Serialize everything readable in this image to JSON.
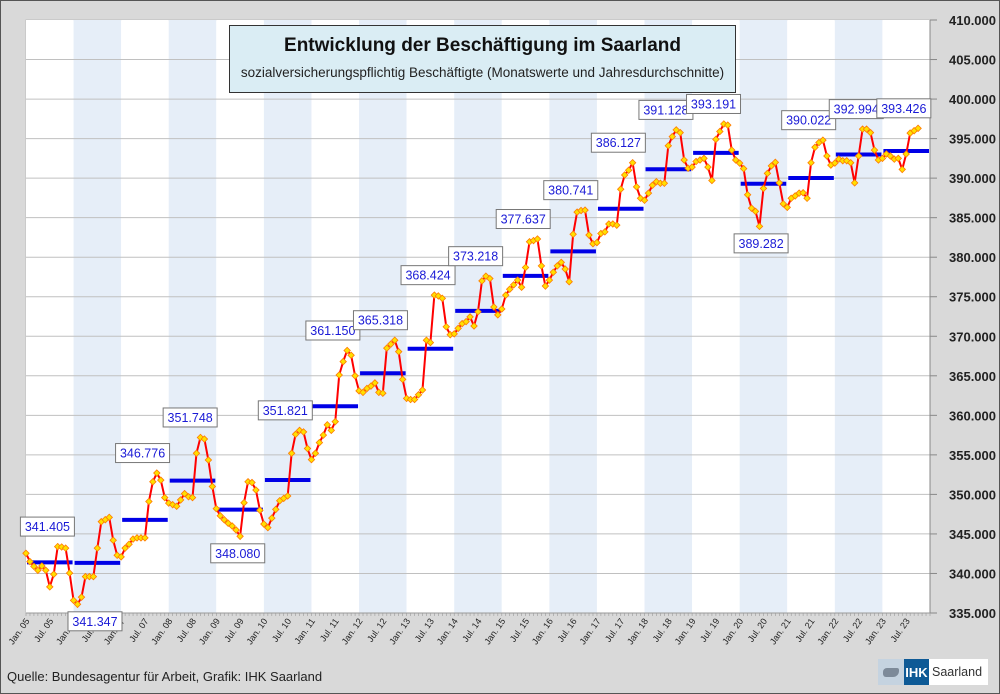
{
  "chart_data": {
    "type": "line",
    "title": "Entwicklung der Beschäftigung im Saarland",
    "subtitle": "sozialversicherungspflichtig Beschäftigte (Monatswerte und Jahresdurchschnitte)",
    "xlabel": "",
    "ylabel": "",
    "ylim": [
      335000,
      410000
    ],
    "y_ticks": [
      410000,
      405000,
      400000,
      395000,
      390000,
      385000,
      380000,
      375000,
      370000,
      365000,
      360000,
      355000,
      350000,
      345000,
      340000,
      335000
    ],
    "y_tick_labels": [
      "410.000",
      "405.000",
      "400.000",
      "395.000",
      "390.000",
      "385.000",
      "380.000",
      "375.000",
      "370.000",
      "365.000",
      "360.000",
      "355.000",
      "350.000",
      "345.000",
      "340.000",
      "335.000"
    ],
    "y_axis_position": "right",
    "grid": true,
    "start_year": 2005,
    "x_tick_labels": [
      "Jan. 05",
      "Jul. 05",
      "Jan. 06",
      "Jul. 06",
      "Jan. 07",
      "Jul. 07",
      "Jan. 08",
      "Jul. 08",
      "Jan. 09",
      "Jul. 09",
      "Jan. 10",
      "Jul. 10",
      "Jan. 11",
      "Jul. 11",
      "Jan. 12",
      "Jul. 12",
      "Jan. 13",
      "Jul. 13",
      "Jan. 14",
      "Jul. 14",
      "Jan. 15",
      "Jul. 15",
      "Jan. 16",
      "Jul. 16",
      "Jan. 17",
      "Jul. 17",
      "Jan. 18",
      "Jul. 18",
      "Jan. 19",
      "Jul. 19",
      "Jan. 20",
      "Jul. 20",
      "Jan. 21",
      "Jul. 21",
      "Jan. 22",
      "Jul. 22",
      "Jan. 23",
      "Jul. 23"
    ],
    "series": [
      {
        "name": "Monatswerte",
        "color": "#ff0000",
        "marker_color": "#ffe000",
        "values": [
          342550,
          341500,
          340900,
          340400,
          340950,
          340400,
          338300,
          339900,
          343400,
          343350,
          343200,
          340050,
          336600,
          336100,
          337000,
          339600,
          339600,
          339600,
          343200,
          346550,
          346800,
          347100,
          344200,
          342300,
          342100,
          343200,
          343700,
          344350,
          344500,
          344500,
          344500,
          349100,
          351600,
          352700,
          351800,
          349600,
          348900,
          348700,
          348500,
          349300,
          350100,
          349700,
          349600,
          355200,
          357200,
          357000,
          354350,
          351000,
          348200,
          347300,
          346800,
          346350,
          346000,
          345500,
          344700,
          348950,
          351600,
          351500,
          350550,
          348000,
          346250,
          345800,
          347000,
          348100,
          349200,
          349500,
          349800,
          355200,
          357600,
          358100,
          357900,
          355800,
          354400,
          355200,
          356550,
          357500,
          358800,
          358100,
          359200,
          365100,
          366800,
          368200,
          367600,
          365000,
          363100,
          362900,
          363400,
          363700,
          364100,
          362900,
          362800,
          368500,
          369000,
          369500,
          368050,
          364550,
          362150,
          362000,
          362000,
          362600,
          363200,
          369500,
          369200,
          375200,
          375100,
          374800,
          371200,
          370200,
          370300,
          371000,
          371600,
          371850,
          372450,
          371300,
          373100,
          377000,
          377600,
          377300,
          373700,
          372700,
          373450,
          375200,
          375950,
          376500,
          377100,
          376200,
          378700,
          381950,
          382100,
          382300,
          378900,
          376350,
          377100,
          378100,
          378900,
          379350,
          378500,
          376900,
          382900,
          385700,
          385900,
          385950,
          382800,
          381700,
          381850,
          383000,
          383200,
          384200,
          384200,
          384050,
          388600,
          390400,
          391000,
          391950,
          388900,
          387450,
          387200,
          388100,
          389100,
          389550,
          389350,
          389350,
          394100,
          395250,
          396100,
          395750,
          392300,
          391250,
          391400,
          392100,
          392300,
          392500,
          391400,
          389700,
          394900,
          395900,
          396850,
          396700,
          393550,
          392300,
          391900,
          391200,
          387900,
          386200,
          385800,
          383900,
          388700,
          390600,
          391550,
          392000,
          389400,
          386750,
          386300,
          387450,
          387750,
          388100,
          388150,
          387450,
          391950,
          393900,
          394500,
          394800,
          392800,
          391650,
          391900,
          392400,
          392200,
          392200,
          391950,
          389400,
          392800,
          396200,
          396200,
          395750,
          393550,
          392300,
          392500,
          393050,
          392800,
          392400,
          392500,
          391100,
          393050,
          395700,
          396000,
          396300
        ]
      },
      {
        "name": "Jahresdurchschnitte",
        "color": "#0000e6",
        "years": [
          2005,
          2006,
          2007,
          2008,
          2009,
          2010,
          2011,
          2012,
          2013,
          2014,
          2015,
          2016,
          2017,
          2018,
          2019,
          2020,
          2021,
          2022,
          2023
        ],
        "values": [
          341405,
          341347,
          346776,
          351748,
          348080,
          351821,
          361150,
          365318,
          368424,
          373218,
          377637,
          380741,
          386127,
          391128,
          393191,
          389282,
          390022,
          392994,
          393426
        ],
        "labels": [
          "341.405",
          "341.347",
          "346.776",
          "351.748",
          "348.080",
          "351.821",
          "361.150",
          "365.318",
          "368.424",
          "373.218",
          "377.637",
          "380.741",
          "386.127",
          "391.128",
          "393.191",
          "389.282",
          "390.022",
          "392.994",
          "393.426"
        ],
        "label_side": [
          "above",
          "below",
          "above",
          "above",
          "below",
          "above",
          "above",
          "above",
          "above",
          "above",
          "above",
          "above",
          "above",
          "above",
          "above",
          "below",
          "above",
          "above",
          "above"
        ]
      }
    ],
    "band_colors": [
      "#ffffff",
      "#e6eef8"
    ],
    "legend": "none"
  },
  "footer": {
    "source": "Quelle: Bundesagentur für Arbeit, Grafik: IHK Saarland",
    "logo_ihk": "IHK",
    "logo_region": "Saarland"
  }
}
